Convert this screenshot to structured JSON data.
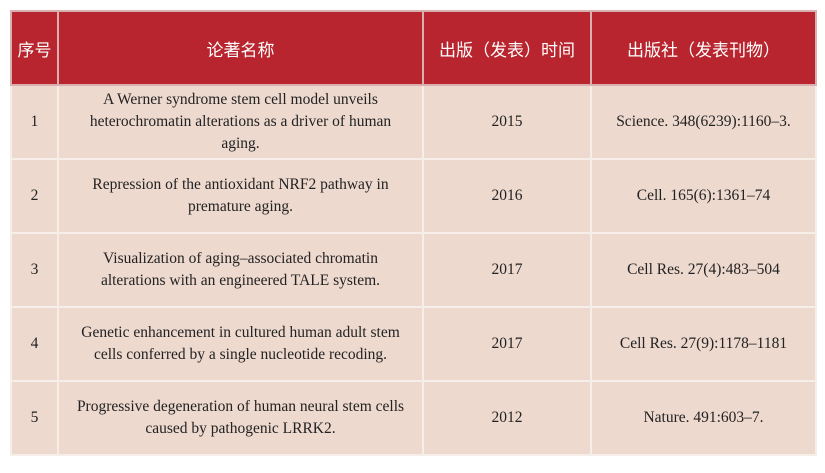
{
  "headers": [
    "序号",
    "论著名称",
    "出版（发表）时间",
    "出版社（发表刊物）"
  ],
  "rows": [
    {
      "no": "1",
      "title": "A Werner syndrome stem cell model unveils heterochromatin alterations as a driver of human aging.",
      "year": "2015",
      "journal": "Science. 348(6239):1160–3."
    },
    {
      "no": "2",
      "title": "Repression of the antioxidant NRF2 pathway in premature aging.",
      "year": "2016",
      "journal": "Cell. 165(6):1361–74"
    },
    {
      "no": "3",
      "title": "Visualization of aging–associated chromatin alterations with an engineered TALE system.",
      "year": "2017",
      "journal": "Cell Res. 27(4):483–504"
    },
    {
      "no": "4",
      "title": "Genetic enhancement in cultured human adult stem cells conferred by a single nucleotide recoding.",
      "year": "2017",
      "journal": "Cell Res. 27(9):1178–1181"
    },
    {
      "no": "5",
      "title": "Progressive degeneration of human neural stem cells caused by pathogenic LRRK2.",
      "year": "2012",
      "journal": "Nature. 491:603–7."
    }
  ]
}
